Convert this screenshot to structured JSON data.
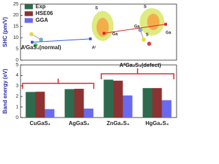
{
  "chart_data": [
    {
      "type": "line",
      "ylabel": "SHC (pm/V)",
      "ylim": [
        0,
        25
      ],
      "yticks": [
        0,
        5,
        10,
        15,
        20,
        25
      ],
      "categories": [
        null,
        null,
        null,
        null
      ],
      "series": [
        {
          "name": "AᴵGaS₂(normal)",
          "color": "#3355dd",
          "values": [
            8,
            9.5,
            null,
            null
          ]
        },
        {
          "name": "AᴵᴵGa₂S₄(defect)",
          "color": "#dd2222",
          "values": [
            null,
            null,
            12,
            16
          ]
        }
      ],
      "annotations": [
        "S",
        "Ga",
        "Aᴵ",
        "S",
        "Ga",
        "Ga",
        "S"
      ]
    },
    {
      "type": "bar",
      "ylabel": "Band energy (eV)",
      "ylim": [
        0,
        5
      ],
      "yticks": [
        0,
        1,
        2,
        3,
        4,
        5
      ],
      "categories": [
        "CuGaS₂",
        "AgGaS₂",
        "ZnGa₂S₄",
        "HgGa₂S₄"
      ],
      "series": [
        {
          "name": "Exp",
          "color": "#2e6b4e",
          "values": [
            2.43,
            2.7,
            3.6,
            2.8
          ]
        },
        {
          "name": "HSE06",
          "color": "#8c3232",
          "values": [
            2.45,
            2.73,
            3.5,
            2.8
          ]
        },
        {
          "name": "GGA",
          "color": "#6a6af0",
          "values": [
            0.8,
            0.85,
            2.1,
            1.65
          ]
        }
      ]
    }
  ]
}
